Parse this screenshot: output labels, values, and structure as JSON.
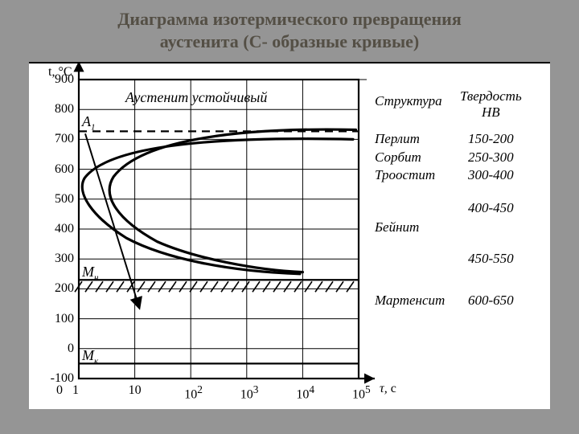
{
  "title_line1": "Диаграмма  изотермического  превращения",
  "title_line2": "аустенита (С- образные кривые)",
  "chart": {
    "type": "TTT-curve",
    "y_axis_title": "t, °C",
    "x_axis_value_label": "τ,",
    "x_axis_unit": "с",
    "ylim": [
      -100,
      900
    ],
    "ytick_step": 100,
    "xticks_log": [
      0,
      1,
      2,
      3,
      4,
      5
    ],
    "xlabels": [
      "0",
      "1",
      "10",
      "10²",
      "10³",
      "10⁴",
      "10⁵"
    ],
    "ylabels": [
      "-100",
      "0",
      "100",
      "200",
      "300",
      "400",
      "500",
      "600",
      "700",
      "800",
      "900"
    ],
    "colors": {
      "bg": "#ffffff",
      "axis": "#000000",
      "grid": "#000000",
      "curve": "#000000",
      "hatch": "#000000"
    },
    "stroke_widths": {
      "axis": 2.2,
      "grid": 1,
      "curve": 3.2,
      "hline": 2.2
    },
    "top_label": "Аустенит устойчивый",
    "A1_label": "A₁",
    "Mn_label": "Mн",
    "Mk_label": "Mк",
    "A1_temp": 727,
    "Mn_temp": 230,
    "Mk_temp": -50,
    "dashed_region": [
      700,
      730
    ]
  },
  "table": {
    "col1_head": "Структура",
    "col2_head_l1": "Твердость",
    "col2_head_l2": "HB",
    "rows": [
      {
        "name": "Перлит",
        "hb": "150-200",
        "t": 700
      },
      {
        "name": "Сорбит",
        "hb": "250-300",
        "t": 640
      },
      {
        "name": "Троостит",
        "hb": "300-400",
        "t": 580
      },
      {
        "name": "",
        "hb": "400-450",
        "t": 470
      },
      {
        "name": "Бейнит",
        "hb": "",
        "t": 405
      },
      {
        "name": "",
        "hb": "450-550",
        "t": 300
      },
      {
        "name": "Мартенсит",
        "hb": "600-650",
        "t": 160
      }
    ]
  }
}
